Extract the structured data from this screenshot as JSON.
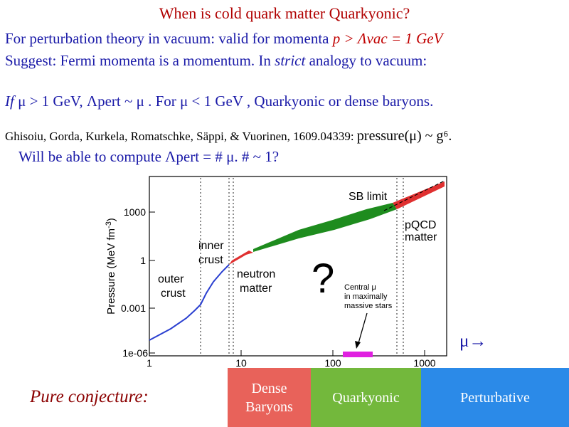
{
  "title": "When is cold quark matter Quarkyonic?",
  "line1": {
    "text": "For perturbation theory in vacuum: valid for momenta ",
    "cond": "p > Λvac = 1 GeV"
  },
  "line2": {
    "pre": "Suggest: Fermi momenta is a momentum.  In ",
    "strict": "strict",
    "post": " analogy to vacuum:"
  },
  "line3": {
    "if": "If",
    "text": " μ > 1 GeV, Λpert ~  μ .  For μ < 1 GeV ,  Quarkyonic or dense baryons."
  },
  "line4": {
    "authors": "Ghisoiu, Gorda, Kurkela, Romatschke, Säppi, & Vuorinen, 1609.04339: ",
    "formula": "pressure(μ) ~ g⁶."
  },
  "line5": "Will be able to compute Λpert = # μ.  # ~ 1?",
  "figure": {
    "ylabel": "Pressure (MeV fm",
    "ylabel_sup": "-3",
    "ylabel_close": ")",
    "yticks": [
      "1000",
      "1",
      "0.001",
      "1e-06"
    ],
    "xticks": [
      "1",
      "10",
      "100",
      "1000"
    ],
    "labels": {
      "sb": "SB limit",
      "pqcd1": "pQCD",
      "pqcd2": "matter",
      "inner1": "inner",
      "inner2": "crust",
      "outer1": "outer",
      "outer2": "crust",
      "neutron1": "neutron",
      "neutron2": "matter",
      "question": "?",
      "central1": "Central μ",
      "central2": "in maximally",
      "central3": "massive stars"
    },
    "colors": {
      "outer": "#2a3fd0",
      "inner_dense": "#e03030",
      "band": "#1e8c1e",
      "marker": "#e020e0"
    }
  },
  "mu_arrow": "μ→",
  "conjecture": "Pure conjecture:",
  "regions": {
    "dense_line1": "Dense",
    "dense_line2": "Baryons",
    "quarkyonic": "Quarkyonic",
    "perturbative": "Perturbative"
  }
}
